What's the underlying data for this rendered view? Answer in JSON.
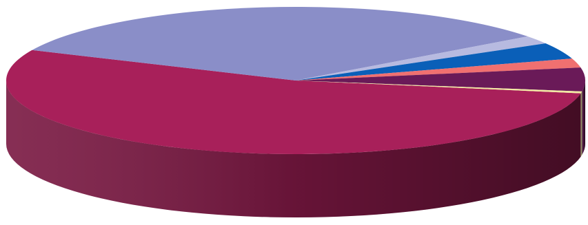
{
  "chart_data": {
    "type": "pie",
    "style": "3d-exploded-none",
    "title": "",
    "legend": "none",
    "data_labels": "none",
    "start_angle_deg": 10,
    "slices": [
      {
        "value": 54.0,
        "color": "#A8205A"
      },
      {
        "value": 33.0,
        "color": "#8A8EC8"
      },
      {
        "value": 1.8,
        "color": "#B7BAE0"
      },
      {
        "value": 3.6,
        "color": "#0A5FB8"
      },
      {
        "value": 2.0,
        "color": "#F07070"
      },
      {
        "value": 5.2,
        "color": "#6A1A58"
      },
      {
        "value": 0.4,
        "color": "#F2E9A2"
      }
    ]
  }
}
